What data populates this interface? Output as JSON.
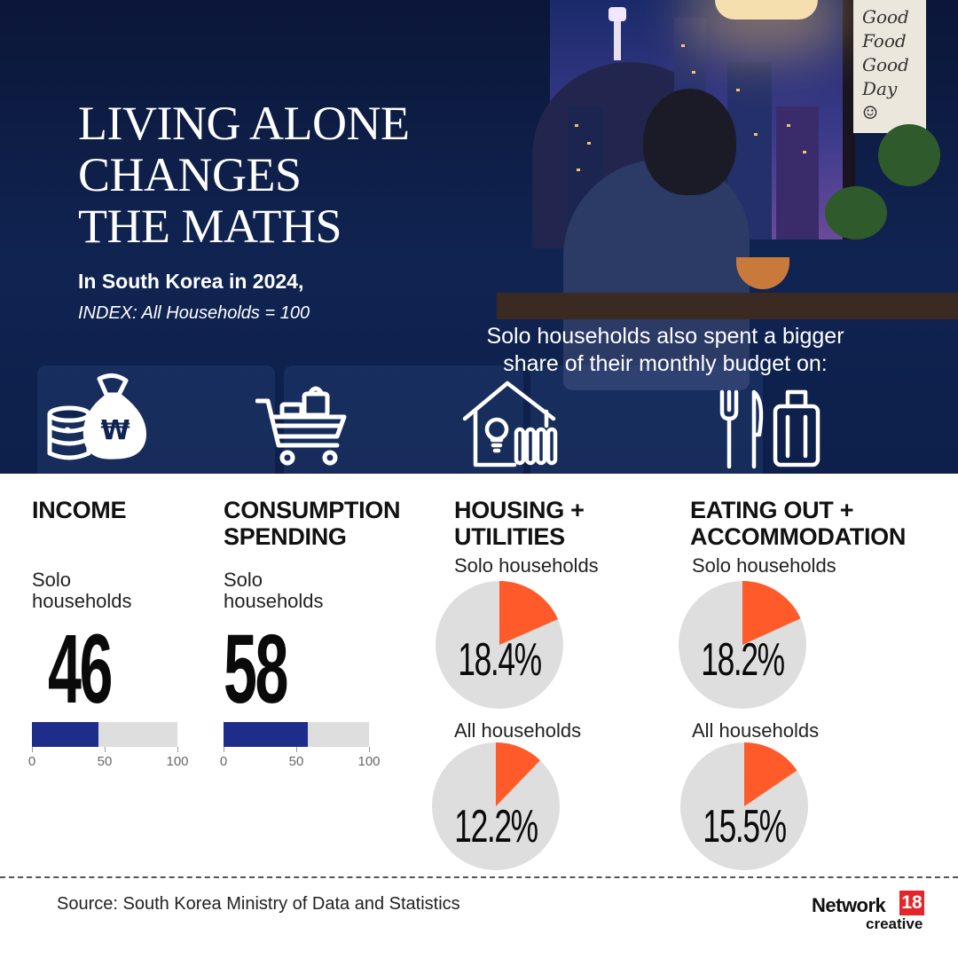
{
  "header": {
    "title_lines": [
      "LIVING ALONE",
      "CHANGES",
      "THE MATHS"
    ],
    "subtitle": "In South Korea in 2024,",
    "index_note": "INDEX: All Households = 100",
    "share_note_lines": [
      "Solo households also spent a bigger",
      "share of their monthly budget on:"
    ],
    "poster_text": "Good\nFood\nGood\nDay\n☺"
  },
  "icons": [
    "money-bag-icon",
    "shopping-cart-icon",
    "house-utilities-icon",
    "dining-travel-icon"
  ],
  "colors": {
    "navy": "#1f2d8a",
    "bar_track": "#dedede",
    "pie_accent": "#ff5a2a",
    "pie_base": "#dedede"
  },
  "chart_data": [
    {
      "type": "bar",
      "title": "INCOME",
      "series_label": [
        "Solo",
        "households"
      ],
      "value": 46,
      "value_label": "46",
      "xlim": [
        0,
        100
      ],
      "ticks": [
        "0",
        "50",
        "100"
      ]
    },
    {
      "type": "bar",
      "title": "CONSUMPTION SPENDING",
      "title_lines": [
        "CONSUMPTION",
        "SPENDING"
      ],
      "series_label": [
        "Solo",
        "households"
      ],
      "value": 58,
      "value_label": "58",
      "xlim": [
        0,
        100
      ],
      "ticks": [
        "0",
        "50",
        "100"
      ]
    },
    {
      "type": "pie",
      "title": "HOUSING + UTILITIES",
      "title_lines": [
        "HOUSING +",
        "UTILITIES"
      ],
      "slices": [
        {
          "label": "Solo households",
          "value": 18.4,
          "value_label": "18.4%"
        },
        {
          "label": "All households",
          "value": 12.2,
          "value_label": "12.2%"
        }
      ]
    },
    {
      "type": "pie",
      "title": "EATING OUT + ACCOMMODATION",
      "title_lines": [
        "EATING OUT +",
        "ACCOMMODATION"
      ],
      "slices": [
        {
          "label": "Solo households",
          "value": 18.2,
          "value_label": "18.2%"
        },
        {
          "label": "All households",
          "value": 15.5,
          "value_label": "15.5%"
        }
      ]
    }
  ],
  "footer": {
    "source": "Source: South Korea Ministry of Data and Statistics",
    "logo_word": "Network",
    "logo_badge": "18",
    "logo_sub": "creative"
  }
}
